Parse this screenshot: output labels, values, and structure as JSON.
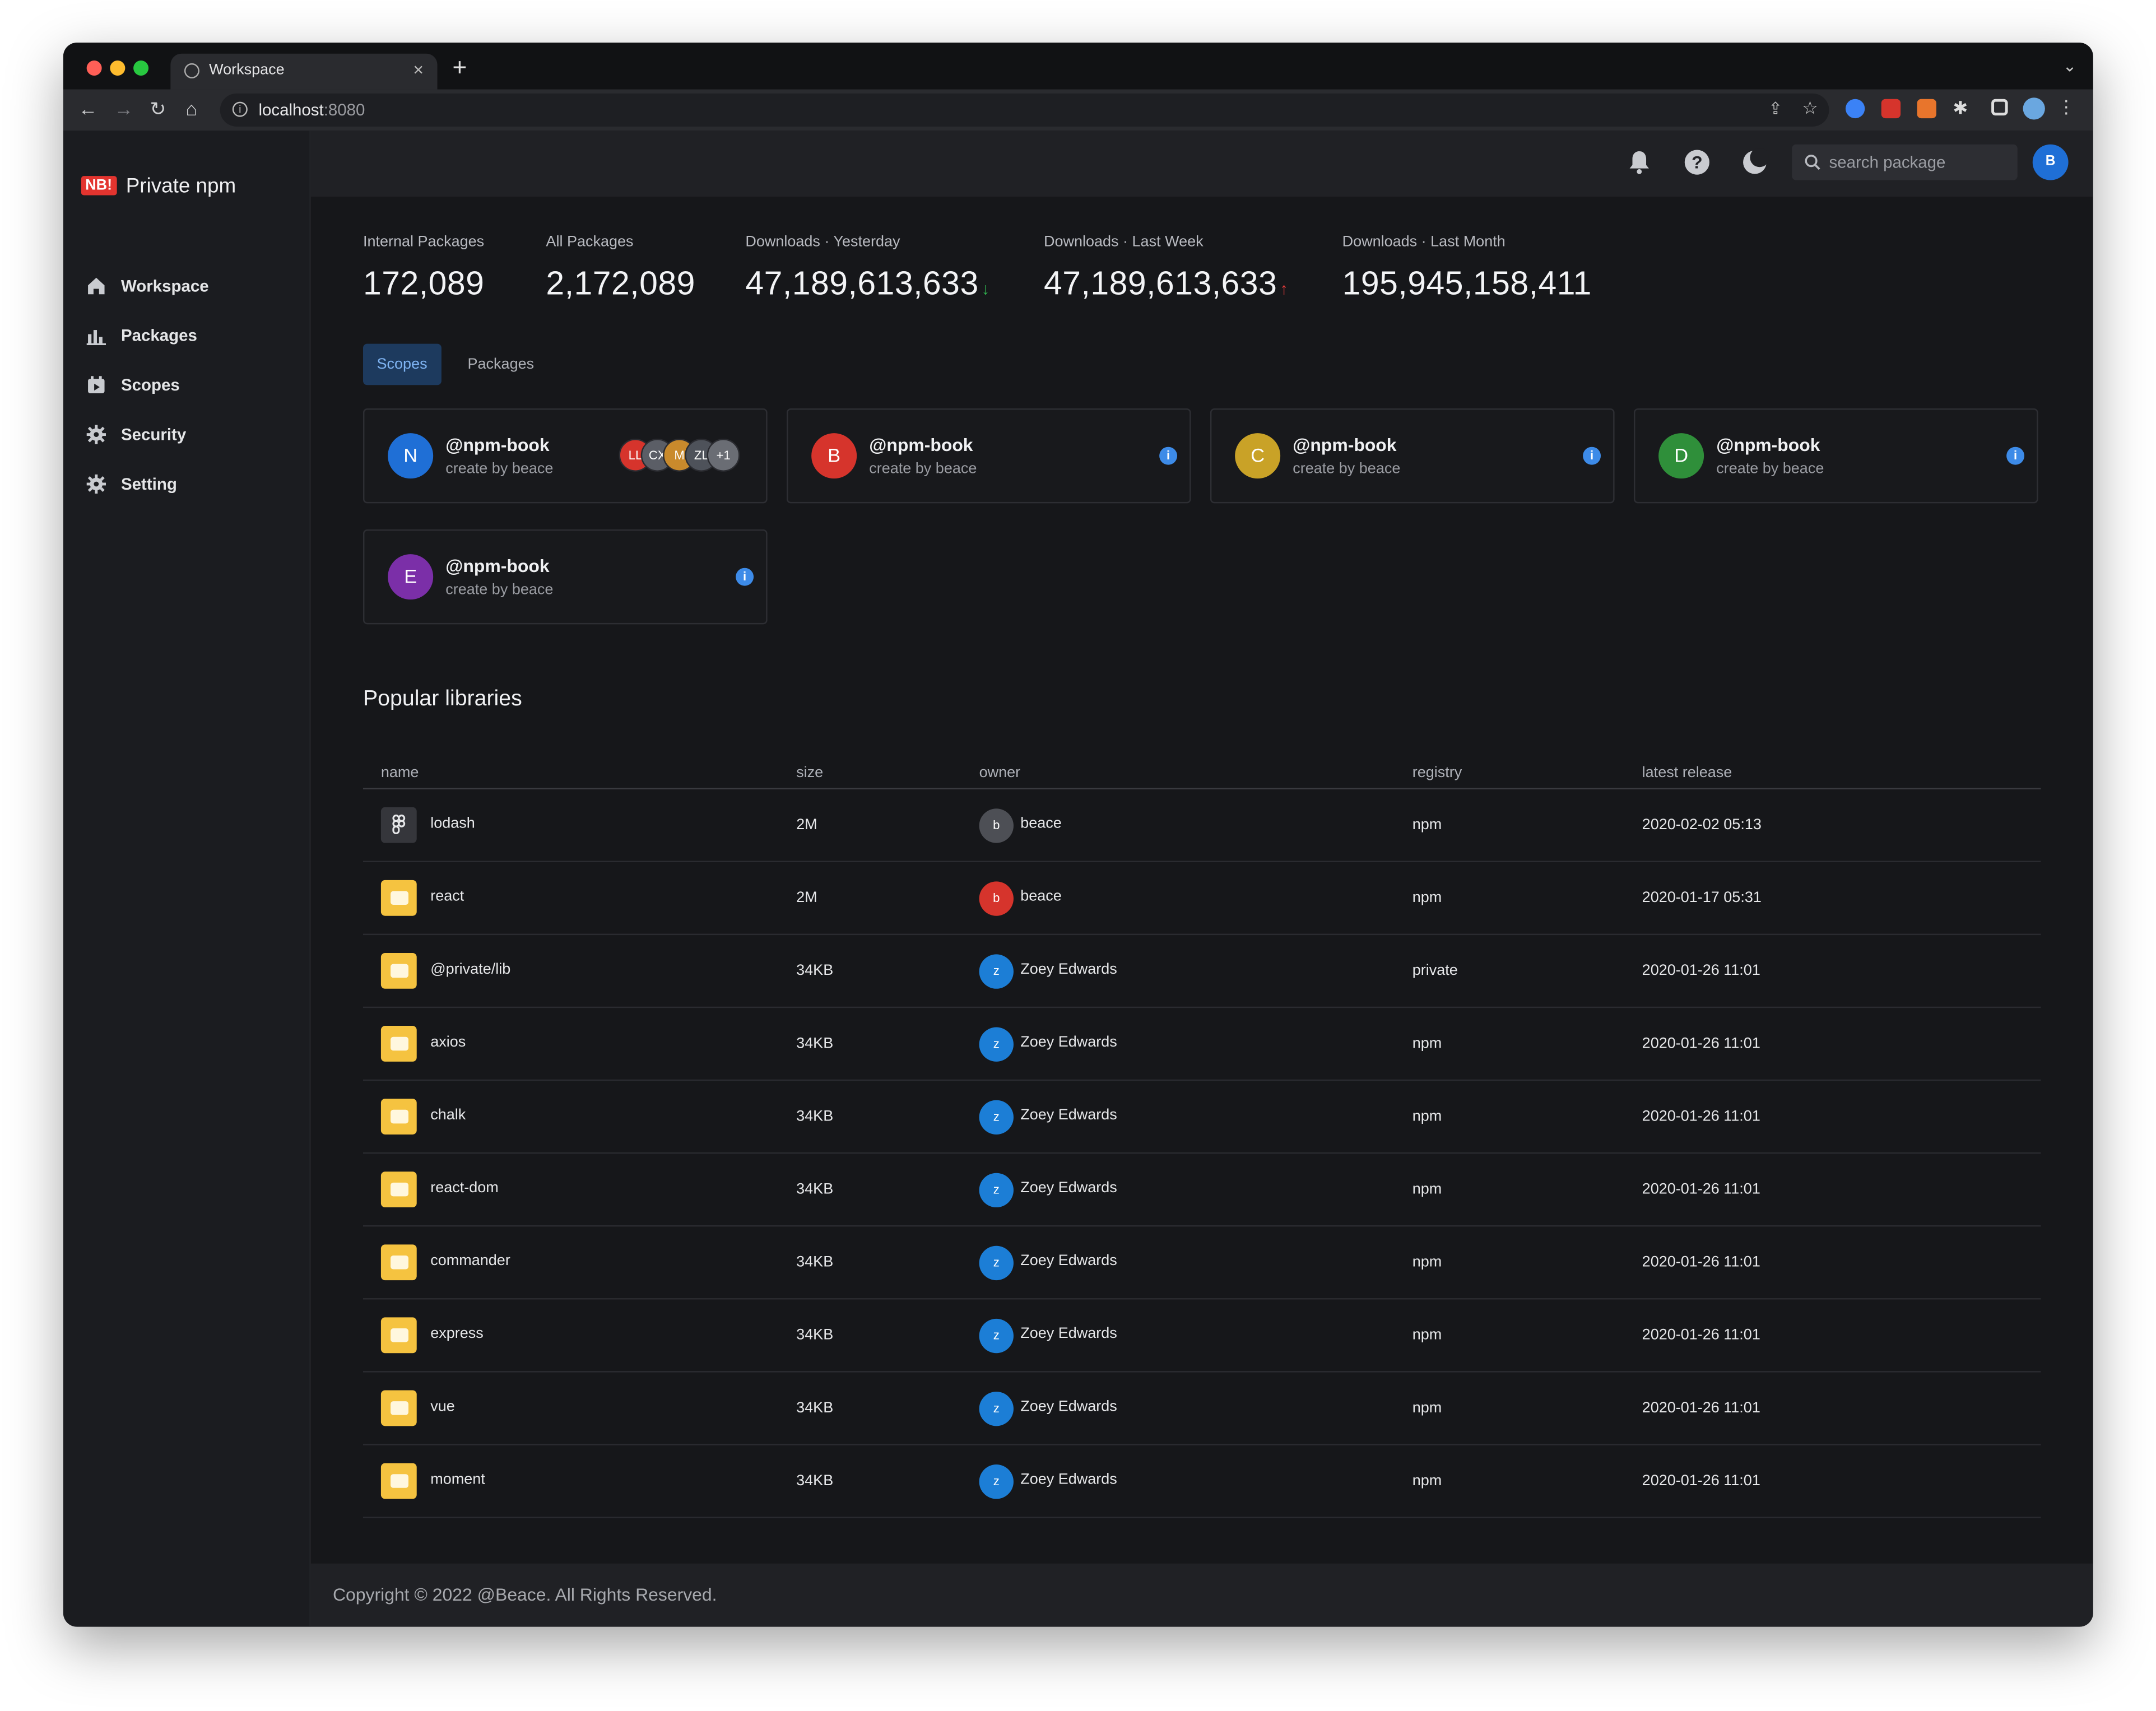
{
  "browser": {
    "tab_title": "Workspace",
    "url_host": "localhost",
    "url_port": ":8080"
  },
  "brand": {
    "badge": "NB!",
    "name": "Private npm"
  },
  "sidebar": {
    "items": [
      {
        "label": "Workspace",
        "icon": "home-icon"
      },
      {
        "label": "Packages",
        "icon": "bar-chart-icon"
      },
      {
        "label": "Scopes",
        "icon": "calendar-icon"
      },
      {
        "label": "Security",
        "icon": "gear-icon"
      },
      {
        "label": "Setting",
        "icon": "gear-icon"
      }
    ]
  },
  "header": {
    "search_placeholder": "search package",
    "avatar": "B"
  },
  "stats": [
    {
      "label": "Internal Packages",
      "value": "172,089"
    },
    {
      "label": "All Packages",
      "value": "2,172,089"
    },
    {
      "label": "Downloads · Yesterday",
      "value": "47,189,613,633",
      "trend": "down"
    },
    {
      "label": "Downloads · Last Week",
      "value": "47,189,613,633",
      "trend": "up"
    },
    {
      "label": "Downloads · Last Month",
      "value": "195,945,158,411"
    }
  ],
  "tabs": [
    {
      "label": "Scopes",
      "active": true
    },
    {
      "label": "Packages",
      "active": false
    }
  ],
  "scopes": [
    {
      "initial": "N",
      "name": "@npm-book",
      "sub": "create by beace",
      "color": "#1f6fd6"
    },
    {
      "initial": "B",
      "name": "@npm-book",
      "sub": "create by beace",
      "color": "#d6342c"
    },
    {
      "initial": "C",
      "name": "@npm-book",
      "sub": "create by beace",
      "color": "#c9a227"
    },
    {
      "initial": "D",
      "name": "@npm-book",
      "sub": "create by beace",
      "color": "#2f8f3a"
    },
    {
      "initial": "E",
      "name": "@npm-book",
      "sub": "create by beace",
      "color": "#7b2fa8"
    }
  ],
  "member_stack": [
    {
      "label": "LL",
      "color": "#d6342c"
    },
    {
      "label": "CX",
      "color": "#5b5e66"
    },
    {
      "label": "M",
      "color": "#c98a2c"
    },
    {
      "label": "ZL",
      "color": "#4e525a"
    },
    {
      "label": "+1",
      "color": "#6a6d74"
    }
  ],
  "popular": {
    "title": "Popular libraries",
    "columns": [
      "name",
      "size",
      "owner",
      "registry",
      "latest release"
    ],
    "rows": [
      {
        "name": "lodash",
        "size": "2M",
        "owner": "beace",
        "owner_initial": "b",
        "owner_color": "#4d4f55",
        "registry": "npm",
        "release": "2020-02-02 05:13",
        "icon": "figma-icon"
      },
      {
        "name": "react",
        "size": "2M",
        "owner": "beace",
        "owner_initial": "b",
        "owner_color": "#d6342c",
        "registry": "npm",
        "release": "2020-01-17 05:31",
        "icon": "folder-icon"
      },
      {
        "name": "@private/lib",
        "size": "34KB",
        "owner": "Zoey Edwards",
        "owner_initial": "z",
        "owner_color": "#1c7ed6",
        "registry": "private",
        "release": "2020-01-26 11:01",
        "icon": "folder-icon"
      },
      {
        "name": "axios",
        "size": "34KB",
        "owner": "Zoey Edwards",
        "owner_initial": "z",
        "owner_color": "#1c7ed6",
        "registry": "npm",
        "release": "2020-01-26 11:01",
        "icon": "folder-icon"
      },
      {
        "name": "chalk",
        "size": "34KB",
        "owner": "Zoey Edwards",
        "owner_initial": "z",
        "owner_color": "#1c7ed6",
        "registry": "npm",
        "release": "2020-01-26 11:01",
        "icon": "folder-icon"
      },
      {
        "name": "react-dom",
        "size": "34KB",
        "owner": "Zoey Edwards",
        "owner_initial": "z",
        "owner_color": "#1c7ed6",
        "registry": "npm",
        "release": "2020-01-26 11:01",
        "icon": "folder-icon"
      },
      {
        "name": "commander",
        "size": "34KB",
        "owner": "Zoey Edwards",
        "owner_initial": "z",
        "owner_color": "#1c7ed6",
        "registry": "npm",
        "release": "2020-01-26 11:01",
        "icon": "folder-icon"
      },
      {
        "name": "express",
        "size": "34KB",
        "owner": "Zoey Edwards",
        "owner_initial": "z",
        "owner_color": "#1c7ed6",
        "registry": "npm",
        "release": "2020-01-26 11:01",
        "icon": "folder-icon"
      },
      {
        "name": "vue",
        "size": "34KB",
        "owner": "Zoey Edwards",
        "owner_initial": "z",
        "owner_color": "#1c7ed6",
        "registry": "npm",
        "release": "2020-01-26 11:01",
        "icon": "folder-icon"
      },
      {
        "name": "moment",
        "size": "34KB",
        "owner": "Zoey Edwards",
        "owner_initial": "z",
        "owner_color": "#1c7ed6",
        "registry": "npm",
        "release": "2020-01-26 11:01",
        "icon": "folder-icon"
      }
    ]
  },
  "footer": {
    "text": "Copyright © 2022 @Beace. All Rights Reserved."
  }
}
